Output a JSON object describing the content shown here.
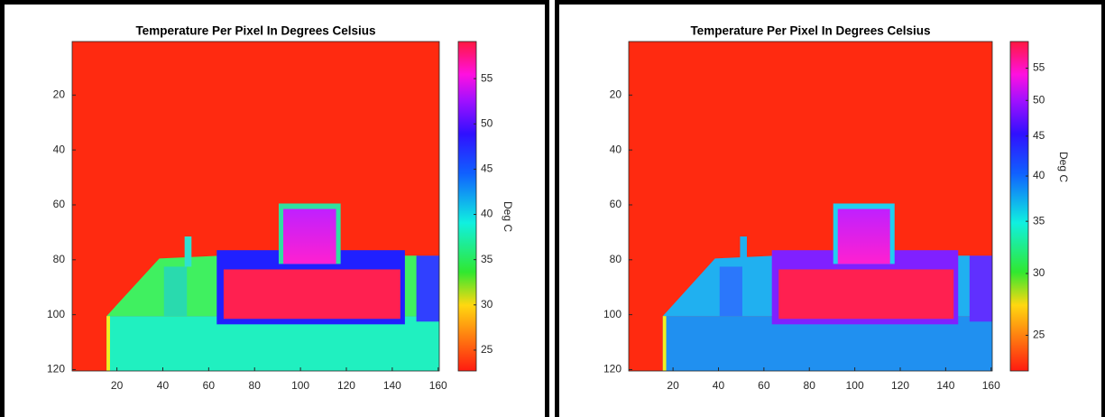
{
  "chart_data": [
    {
      "type": "heatmap",
      "title": "Temperature Per Pixel In Degrees Celsius",
      "xlim": [
        0.5,
        160.5
      ],
      "ylim": [
        0.5,
        120.5
      ],
      "xticks": [
        20,
        40,
        60,
        80,
        100,
        120,
        140,
        160
      ],
      "yticks": [
        20,
        40,
        60,
        80,
        100,
        120
      ],
      "colorbar": {
        "label": "Deg C",
        "scale": "linear",
        "clim": [
          22.7,
          59.1
        ],
        "ticks": [
          25,
          30,
          35,
          40,
          45,
          50,
          55
        ]
      }
    },
    {
      "type": "heatmap",
      "title": "Temperature Per Pixel In Degrees Celsius",
      "xlim": [
        0.5,
        160.5
      ],
      "ylim": [
        0.5,
        120.5
      ],
      "xticks": [
        20,
        40,
        60,
        80,
        100,
        120,
        140,
        160
      ],
      "yticks": [
        20,
        40,
        60,
        80,
        100,
        120
      ],
      "colorbar": {
        "label": "Deg C",
        "scale": "log",
        "clim": [
          22.5,
          59.5
        ],
        "ticks": [
          25,
          30,
          35,
          40,
          45,
          50,
          55
        ]
      }
    }
  ]
}
